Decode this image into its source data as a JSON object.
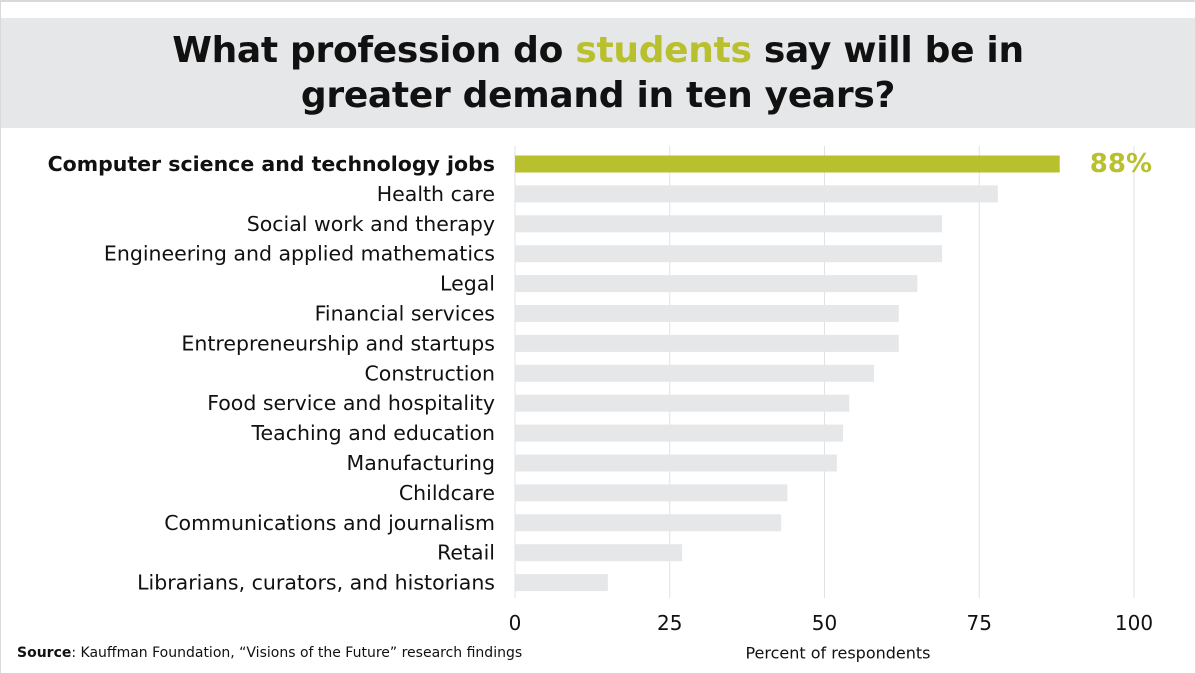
{
  "title": {
    "part1": "What profession do ",
    "highlight": "students",
    "part2": " say will be in greater demand in ten years?"
  },
  "colors": {
    "highlight": "#b9c02d",
    "bar": "#e6e7e8",
    "grid": "#e2e2e2",
    "text": "#111111"
  },
  "source": {
    "label": "Source",
    "text": ": Kauffman Foundation, “Visions of the Future” research findings"
  },
  "chart_data": {
    "type": "bar",
    "orientation": "horizontal",
    "title": "What profession do students say will be in greater demand in ten years?",
    "xlabel": "Percent of respondents",
    "ylabel": "",
    "xlim": [
      0,
      100
    ],
    "xticks": [
      0,
      25,
      50,
      75,
      100
    ],
    "grid": true,
    "categories": [
      "Computer science and technology jobs",
      "Health care",
      "Social work and therapy",
      "Engineering and applied mathematics",
      "Legal",
      "Financial services",
      "Entrepreneurship and startups",
      "Construction",
      "Food service and hospitality",
      "Teaching and education",
      "Manufacturing",
      "Childcare",
      "Communications and journalism",
      "Retail",
      "Librarians, curators, and historians"
    ],
    "values": [
      88,
      78,
      69,
      69,
      65,
      62,
      62,
      58,
      54,
      53,
      52,
      44,
      43,
      27,
      15
    ],
    "highlighted_index": 0,
    "value_label": "88%"
  }
}
